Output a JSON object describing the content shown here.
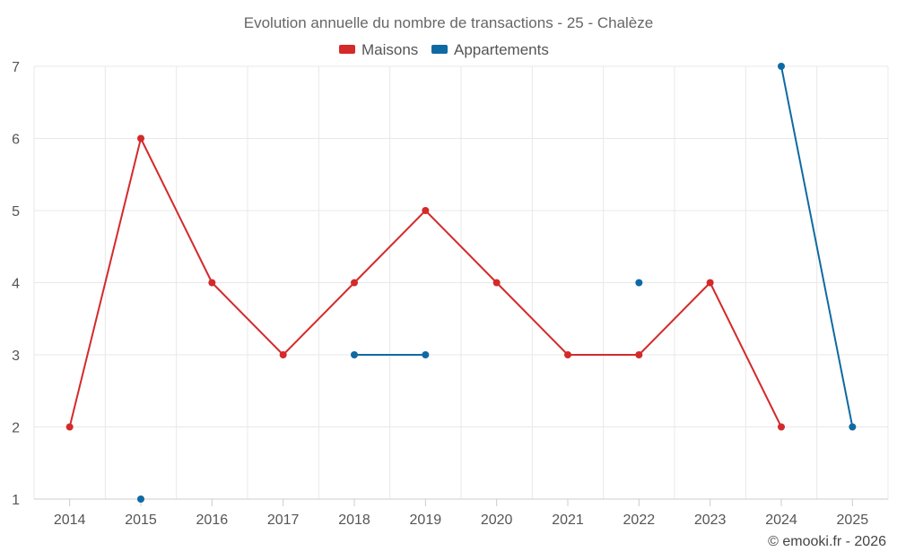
{
  "chart_data": {
    "type": "line",
    "title": "Evolution annuelle du nombre de transactions - 25 - Chalèze",
    "categories": [
      "2014",
      "2015",
      "2016",
      "2017",
      "2018",
      "2019",
      "2020",
      "2021",
      "2022",
      "2023",
      "2024",
      "2025"
    ],
    "series": [
      {
        "name": "Maisons",
        "color": "#d42a2a",
        "values": [
          2,
          6,
          4,
          3,
          4,
          5,
          4,
          3,
          3,
          4,
          2,
          null
        ]
      },
      {
        "name": "Appartements",
        "color": "#0f6aa3",
        "values": [
          null,
          1,
          null,
          null,
          3,
          3,
          null,
          null,
          4,
          null,
          7,
          2
        ]
      }
    ],
    "y_ticks": [
      "1",
      "2",
      "3",
      "4",
      "5",
      "6",
      "7"
    ],
    "ylim": [
      1,
      7
    ],
    "grid": true,
    "legend_position": "top-center",
    "credit": "© emooki.fr - 2026"
  }
}
